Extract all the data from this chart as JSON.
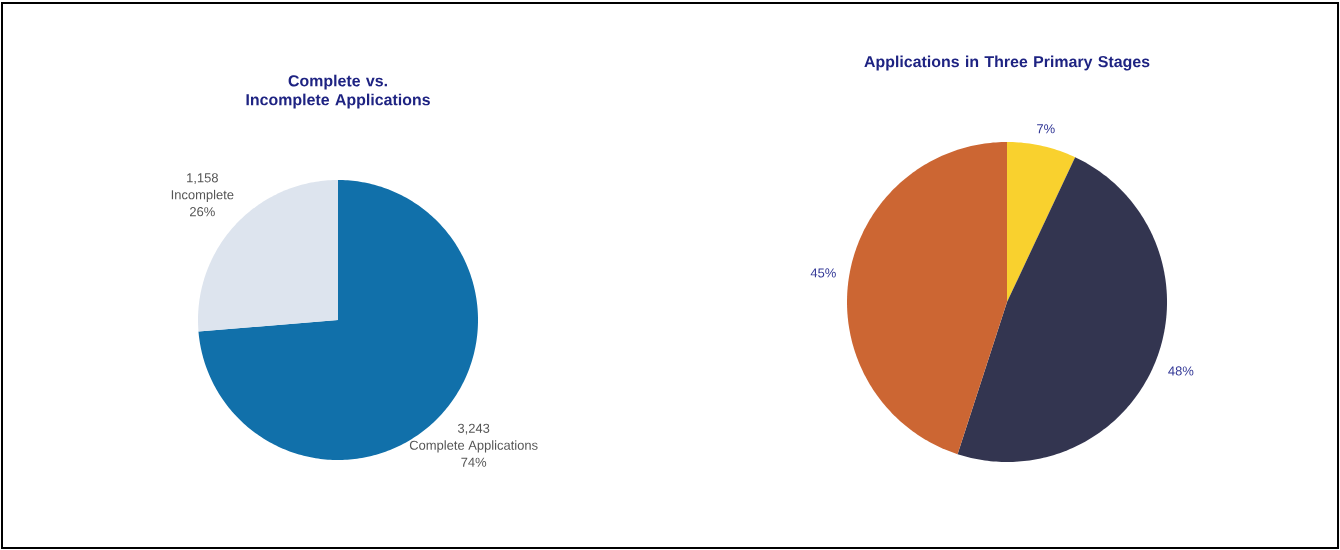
{
  "chart_data": [
    {
      "type": "pie",
      "title": "Complete vs. Incomplete Applications",
      "categories": [
        "Complete Applications",
        "Incomplete"
      ],
      "values": [
        3243,
        1158
      ],
      "colors": [
        "#1170aa",
        "#dde4ee"
      ],
      "value_labels": [
        "3,243",
        "1,158"
      ],
      "annotations": [
        "74%",
        "26%"
      ]
    },
    {
      "type": "pie",
      "title": "Applications in Three Primary Stages",
      "categories": [
        null,
        null,
        null
      ],
      "values": [
        7,
        48,
        45
      ],
      "colors": [
        "#f9d12e",
        "#333550",
        "#cc6633"
      ],
      "value_labels": [
        "7%",
        "48%",
        "45%"
      ]
    }
  ]
}
